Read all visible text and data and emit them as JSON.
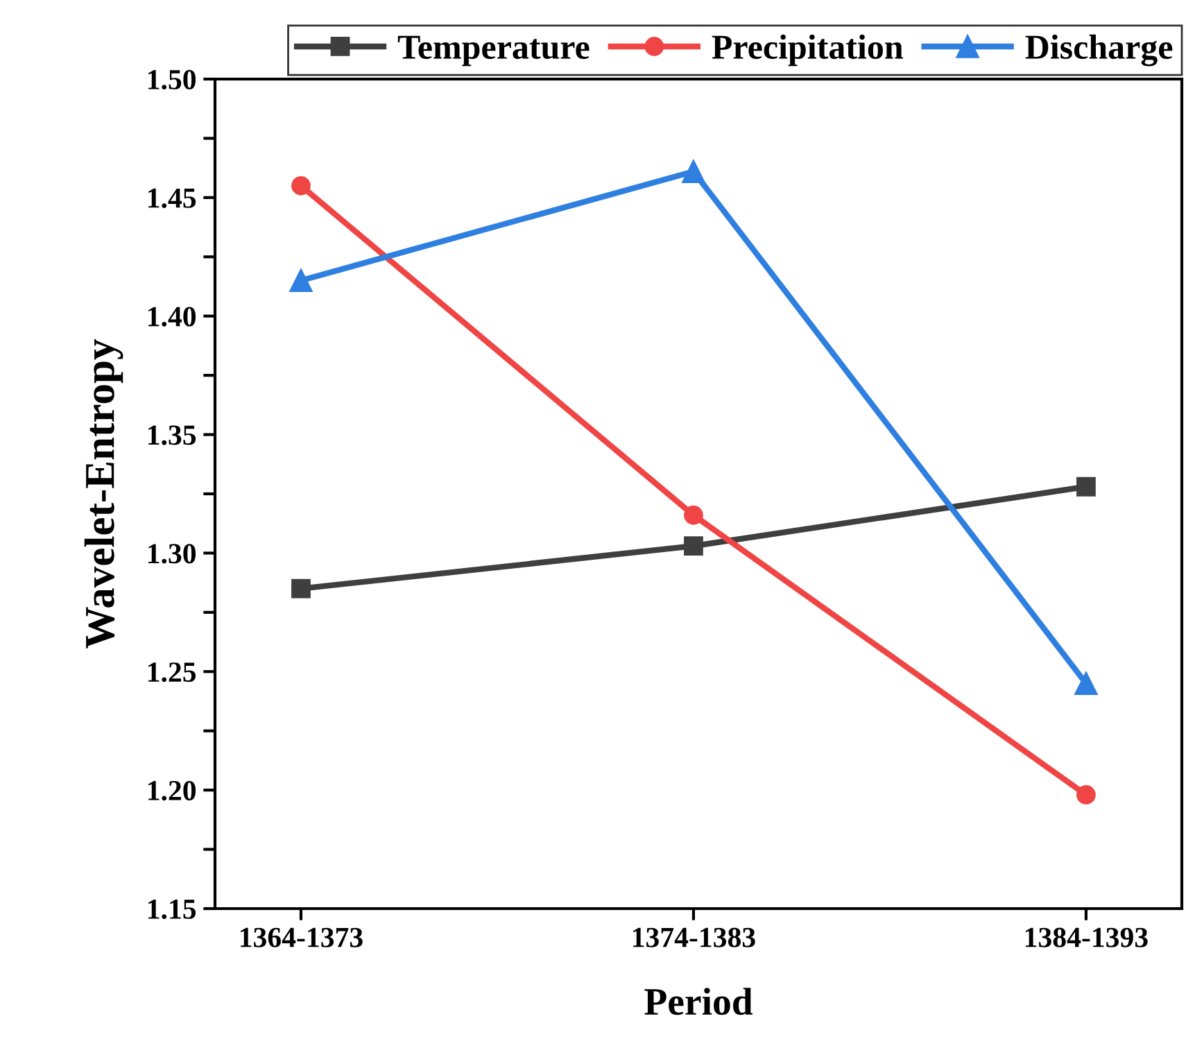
{
  "chart_data": {
    "type": "line",
    "xlabel": "Period",
    "ylabel": "Wavelet-Entropy",
    "categories": [
      "1364-1373",
      "1374-1383",
      "1384-1393"
    ],
    "series": [
      {
        "name": "Temperature",
        "color": "#3f3f3f",
        "values": [
          1.285,
          1.303,
          1.328
        ],
        "marker": "square"
      },
      {
        "name": "Precipitation",
        "color": "#f04545",
        "values": [
          1.455,
          1.316,
          1.198
        ],
        "marker": "circle"
      },
      {
        "name": "Discharge",
        "color": "#2f7fe0",
        "values": [
          1.415,
          1.461,
          1.245
        ],
        "marker": "triangle"
      }
    ],
    "ylim": [
      1.15,
      1.5
    ],
    "yticks": [
      1.15,
      {
        "value": 1.175,
        "label": null
      },
      {
        "value": 1.2,
        "label": "1.20"
      },
      {
        "value": 1.225,
        "label": null
      },
      1.25,
      {
        "value": 1.275,
        "label": null
      },
      {
        "value": 1.3,
        "label": "1.30"
      },
      {
        "value": 1.325,
        "label": null
      },
      1.35,
      {
        "value": 1.375,
        "label": null
      },
      {
        "value": 1.4,
        "label": "1.40"
      },
      {
        "value": 1.425,
        "label": null
      },
      1.45,
      {
        "value": 1.475,
        "label": null
      },
      {
        "value": 1.5,
        "label": "1.50"
      }
    ],
    "grid": false,
    "legend": "top",
    "line_style": "solid"
  }
}
